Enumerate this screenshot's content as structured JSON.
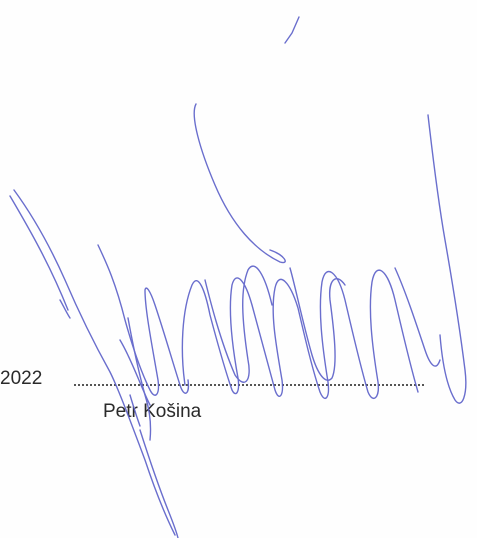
{
  "document": {
    "date_fragment": "2022",
    "signer_name": "Petr Košina",
    "signature_ink_color": "#5a5fc8"
  }
}
